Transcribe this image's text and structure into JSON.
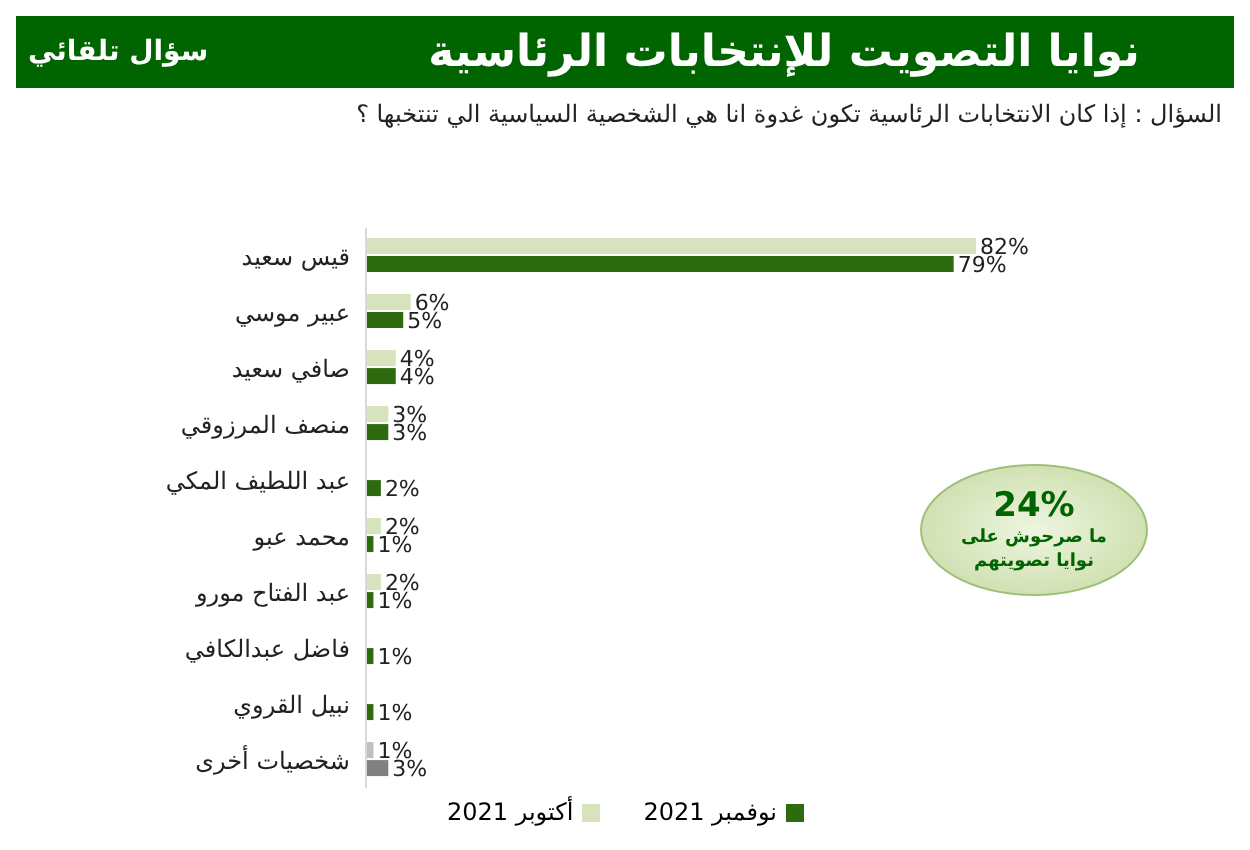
{
  "chart_data": {
    "type": "bar",
    "orientation": "horizontal",
    "title": "نوايا التصويت للإنتخابات الرئاسية",
    "subtitle": "سؤال تلقائي",
    "annotations": [
      "السؤال : إذا كان الانتخابات الرئاسية تكون غدوة انا هي الشخصية السياسية الي تنتخبها ؟",
      "24%",
      "ما صرحوش على نوايا تصويتهم"
    ],
    "categories": [
      "قيس سعيد",
      "عبير موسي",
      "صافي سعيد",
      "منصف المرزوقي",
      "عبد اللطيف المكي",
      "محمد عبو",
      "عبد الفتاح مورو",
      "فاضل عبدالكافي",
      "نبيل القروي",
      "شخصيات أخرى"
    ],
    "series": [
      {
        "name": "أكتوبر 2021",
        "color": "#d6e3bc",
        "colors": [
          "#d6e3bc",
          "#d6e3bc",
          "#d6e3bc",
          "#d6e3bc",
          "#d6e3bc",
          "#d6e3bc",
          "#d6e3bc",
          "#d6e3bc",
          "#d6e3bc",
          "#bfbfbf"
        ],
        "values": [
          82,
          6,
          4,
          3,
          null,
          2,
          2,
          null,
          null,
          1
        ],
        "value_labels": [
          "82%",
          "6%",
          "4%",
          "3%",
          null,
          "2%",
          "2%",
          null,
          null,
          "1%"
        ]
      },
      {
        "name": "نوفمبر 2021",
        "color": "#2e6b0e",
        "colors": [
          "#2e6b0e",
          "#2e6b0e",
          "#2e6b0e",
          "#2e6b0e",
          "#2e6b0e",
          "#2e6b0e",
          "#2e6b0e",
          "#2e6b0e",
          "#2e6b0e",
          "#808080"
        ],
        "values": [
          79,
          5,
          4,
          3,
          2,
          1,
          1,
          1,
          1,
          3
        ],
        "value_labels": [
          "79%",
          "5%",
          "4%",
          "3%",
          "2%",
          "1%",
          "1%",
          "1%",
          "1%",
          "3%"
        ]
      }
    ],
    "legend": "bottom"
  }
}
